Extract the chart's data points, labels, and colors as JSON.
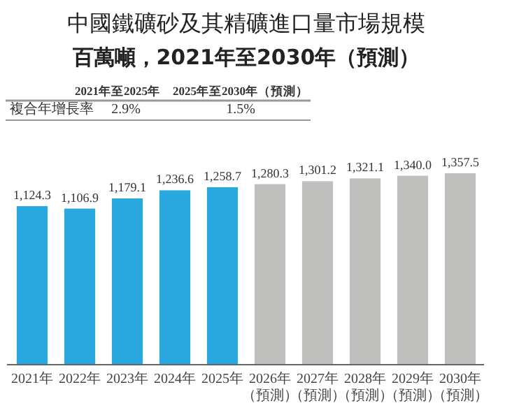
{
  "chart_data": {
    "type": "bar",
    "title": "中國鐵礦砂及其精礦進口量市場規模",
    "subtitle": "百萬噸，2021年至2030年（預測）",
    "categories": [
      "2021年",
      "2022年",
      "2023年",
      "2024年",
      "2025年",
      "2026年（預測）",
      "2027年（預測）",
      "2028年（預測）",
      "2029年（預測）",
      "2030年（預測）"
    ],
    "values": [
      1124.3,
      1106.9,
      1179.1,
      1236.6,
      1258.7,
      1280.3,
      1301.2,
      1321.1,
      1340.0,
      1357.5
    ],
    "colors": [
      "#29a8e0",
      "#29a8e0",
      "#29a8e0",
      "#29a8e0",
      "#29a8e0",
      "#c0c0bf",
      "#c0c0bf",
      "#c0c0bf",
      "#c0c0bf",
      "#c0c0bf"
    ],
    "value_labels": [
      "1,124.3",
      "1,106.9",
      "1,179.1",
      "1,236.6",
      "1,258.7",
      "1,280.3",
      "1,301.2",
      "1,321.1",
      "1,340.0",
      "1,357.5"
    ],
    "annotations": [
      "2021年至2025年",
      "2025年至2030年（預測）",
      "複合年增長率",
      "2.9%",
      "1.5%"
    ]
  }
}
